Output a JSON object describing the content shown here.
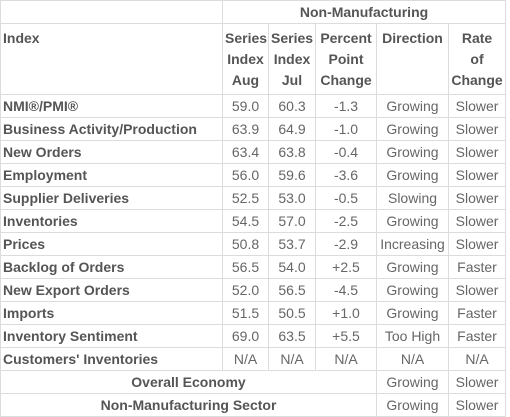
{
  "header": {
    "group_label": "Non-Manufacturing",
    "index_label": "Index",
    "columns": [
      {
        "lines": [
          "Series",
          "Index",
          "Aug"
        ]
      },
      {
        "lines": [
          "Series",
          "Index",
          "Jul"
        ]
      },
      {
        "lines": [
          "Percent",
          "Point",
          "Change"
        ]
      },
      {
        "lines": [
          "Direction"
        ]
      },
      {
        "lines": [
          "Rate",
          "of",
          "Change"
        ]
      }
    ]
  },
  "rows": [
    {
      "name": "NMI®/PMI®",
      "aug": "59.0",
      "jul": "60.3",
      "change": "-1.3",
      "direction": "Growing",
      "rate": "Slower"
    },
    {
      "name": "Business Activity/Production",
      "aug": "63.9",
      "jul": "64.9",
      "change": "-1.0",
      "direction": "Growing",
      "rate": "Slower"
    },
    {
      "name": "New Orders",
      "aug": "63.4",
      "jul": "63.8",
      "change": "-0.4",
      "direction": "Growing",
      "rate": "Slower"
    },
    {
      "name": "Employment",
      "aug": "56.0",
      "jul": "59.6",
      "change": "-3.6",
      "direction": "Growing",
      "rate": "Slower"
    },
    {
      "name": "Supplier Deliveries",
      "aug": "52.5",
      "jul": "53.0",
      "change": "-0.5",
      "direction": "Slowing",
      "rate": "Slower"
    },
    {
      "name": "Inventories",
      "aug": "54.5",
      "jul": "57.0",
      "change": "-2.5",
      "direction": "Growing",
      "rate": "Slower"
    },
    {
      "name": "Prices",
      "aug": "50.8",
      "jul": "53.7",
      "change": "-2.9",
      "direction": "Increasing",
      "rate": "Slower"
    },
    {
      "name": "Backlog of Orders",
      "aug": "56.5",
      "jul": "54.0",
      "change": "+2.5",
      "direction": "Growing",
      "rate": "Faster"
    },
    {
      "name": "New Export Orders",
      "aug": "52.0",
      "jul": "56.5",
      "change": "-4.5",
      "direction": "Growing",
      "rate": "Slower"
    },
    {
      "name": "Imports",
      "aug": "51.5",
      "jul": "50.5",
      "change": "+1.0",
      "direction": "Growing",
      "rate": "Faster"
    },
    {
      "name": "Inventory Sentiment",
      "aug": "69.0",
      "jul": "63.5",
      "change": "+5.5",
      "direction": "Too High",
      "rate": "Faster"
    },
    {
      "name": "Customers' Inventories",
      "aug": "N/A",
      "jul": "N/A",
      "change": "N/A",
      "direction": "N/A",
      "rate": "N/A"
    }
  ],
  "summary": [
    {
      "name": "Overall Economy",
      "direction": "Growing",
      "rate": "Slower"
    },
    {
      "name": "Non-Manufacturing Sector",
      "direction": "Growing",
      "rate": "Slower"
    }
  ]
}
